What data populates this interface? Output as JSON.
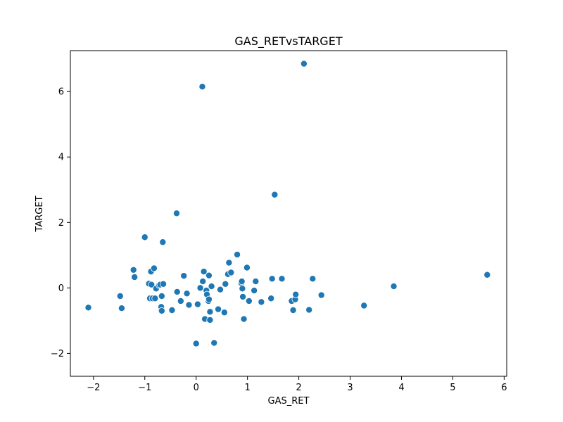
{
  "chart_data": {
    "type": "scatter",
    "title": "GAS_RETvsTARGET",
    "xlabel": "GAS_RET",
    "ylabel": "TARGET",
    "xlim": [
      -2.45,
      6.05
    ],
    "ylim": [
      -2.7,
      7.25
    ],
    "xticks": [
      -2,
      -1,
      0,
      1,
      2,
      3,
      4,
      5,
      6
    ],
    "yticks": [
      -2,
      0,
      2,
      4,
      6
    ],
    "ytick_labels": [
      "−2",
      "0",
      "2",
      "4",
      "6"
    ],
    "xtick_labels": [
      "−2",
      "−1",
      "0",
      "1",
      "2",
      "3",
      "4",
      "5",
      "6"
    ],
    "grid": false,
    "marker_color": "#1f77b4",
    "marker_edge": "#ffffff",
    "series": [
      {
        "x": [
          -2.1,
          -1.48,
          -1.45,
          -1.22,
          -1.2,
          -1.0,
          -0.92,
          -0.9,
          -0.88,
          -0.87,
          -0.85,
          -0.82,
          -0.8,
          -0.78,
          -0.72,
          -0.7,
          -0.68,
          -0.67,
          -0.67,
          -0.65,
          -0.64,
          -0.47,
          -0.38,
          -0.37,
          -0.3,
          -0.24,
          -0.18,
          -0.14,
          0.0,
          0.03,
          0.08,
          0.12,
          0.13,
          0.15,
          0.17,
          0.2,
          0.21,
          0.24,
          0.25,
          0.25,
          0.27,
          0.27,
          0.3,
          0.35,
          0.43,
          0.47,
          0.55,
          0.57,
          0.62,
          0.64,
          0.68,
          0.8,
          0.88,
          0.89,
          0.9,
          0.91,
          0.93,
          0.99,
          1.03,
          1.13,
          1.16,
          1.27,
          1.46,
          1.48,
          1.53,
          1.67,
          1.86,
          1.89,
          1.93,
          1.94,
          2.1,
          2.2,
          2.27,
          2.44,
          3.27,
          3.85,
          5.67
        ],
        "y": [
          -0.6,
          -0.25,
          -0.62,
          0.55,
          0.33,
          1.55,
          0.13,
          -0.32,
          0.5,
          0.1,
          -0.32,
          0.6,
          -0.32,
          -0.02,
          0.08,
          0.1,
          -0.58,
          -0.7,
          -0.25,
          1.4,
          0.12,
          -0.68,
          2.28,
          -0.12,
          -0.4,
          0.37,
          -0.17,
          -0.52,
          -1.7,
          -0.5,
          0.0,
          6.15,
          0.2,
          0.5,
          -0.95,
          -0.08,
          -0.2,
          -0.4,
          -0.35,
          0.38,
          -0.73,
          -0.98,
          0.05,
          -1.68,
          -0.65,
          -0.05,
          -0.75,
          0.12,
          0.42,
          0.77,
          0.47,
          1.02,
          0.15,
          0.2,
          -0.02,
          -0.27,
          -0.95,
          0.62,
          -0.4,
          -0.08,
          0.2,
          -0.43,
          -0.32,
          0.28,
          2.85,
          0.28,
          -0.4,
          -0.68,
          -0.35,
          -0.2,
          6.85,
          -0.67,
          0.28,
          -0.22,
          -0.54,
          0.05,
          0.4
        ]
      }
    ]
  }
}
